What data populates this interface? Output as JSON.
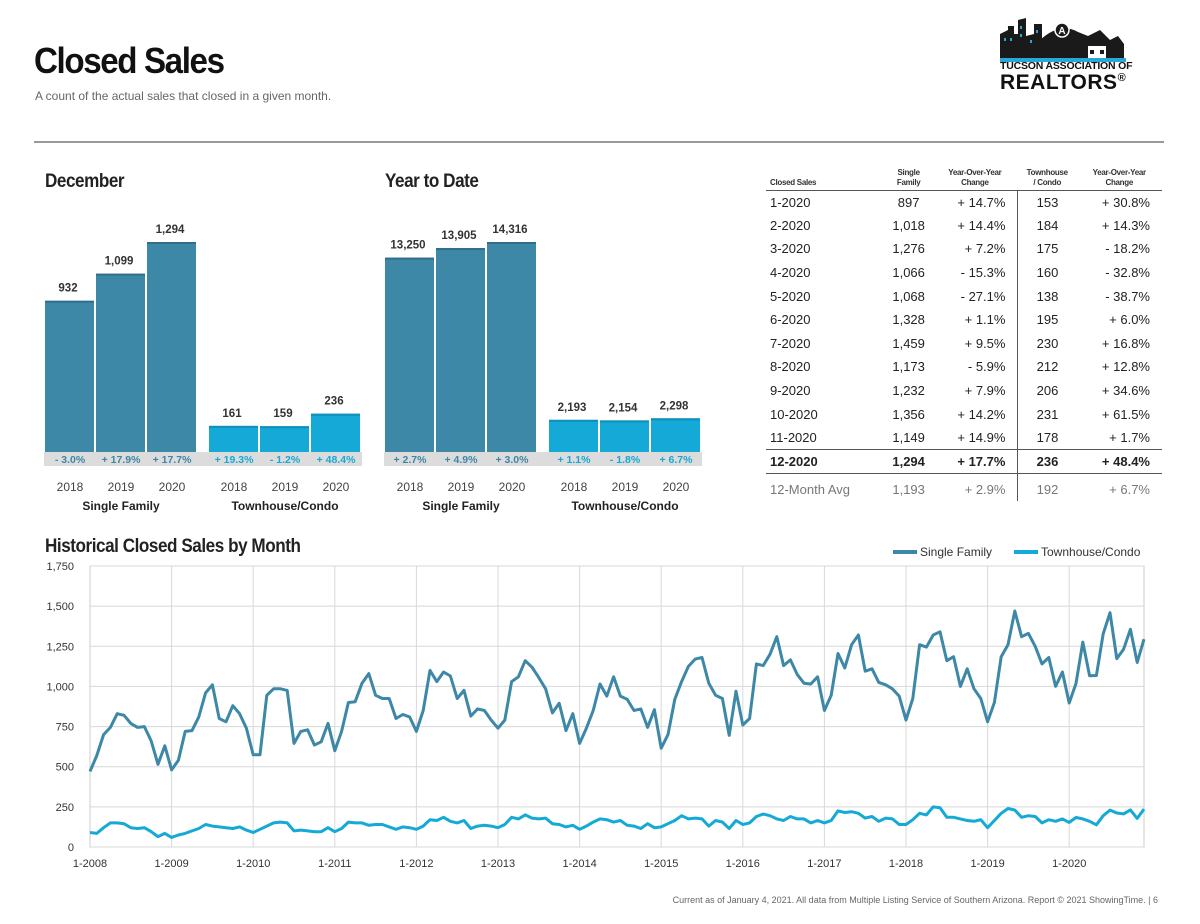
{
  "header": {
    "title": "Closed Sales",
    "subtitle": "A count of the actual sales that closed in a given month."
  },
  "logo": {
    "line1": "TUCSON ASSOCIATION OF",
    "line2": "REALTORS",
    "mark": "®",
    "letter": "A"
  },
  "colors": {
    "single_family": "#3d87a7",
    "townhouse": "#14a9d6"
  },
  "december": {
    "title": "December",
    "groups": [
      {
        "name": "Single Family",
        "years": [
          "2018",
          "2019",
          "2020"
        ],
        "values": [
          932,
          1099,
          1294
        ],
        "value_labels": [
          "932",
          "1,099",
          "1,294"
        ],
        "changes": [
          "- 3.0%",
          "+ 17.9%",
          "+ 17.7%"
        ]
      },
      {
        "name": "Townhouse/Condo",
        "years": [
          "2018",
          "2019",
          "2020"
        ],
        "values": [
          161,
          159,
          236
        ],
        "value_labels": [
          "161",
          "159",
          "236"
        ],
        "changes": [
          "+ 19.3%",
          "- 1.2%",
          "+ 48.4%"
        ]
      }
    ]
  },
  "ytd": {
    "title": "Year to Date",
    "groups": [
      {
        "name": "Single Family",
        "years": [
          "2018",
          "2019",
          "2020"
        ],
        "values": [
          13250,
          13905,
          14316
        ],
        "value_labels": [
          "13,250",
          "13,905",
          "14,316"
        ],
        "changes": [
          "+ 2.7%",
          "+ 4.9%",
          "+ 3.0%"
        ]
      },
      {
        "name": "Townhouse/Condo",
        "years": [
          "2018",
          "2019",
          "2020"
        ],
        "values": [
          2193,
          2154,
          2298
        ],
        "value_labels": [
          "2,193",
          "2,154",
          "2,298"
        ],
        "changes": [
          "+ 1.1%",
          "- 1.8%",
          "+ 6.7%"
        ]
      }
    ]
  },
  "table": {
    "headers": [
      {
        "l1": "",
        "l2": "Closed Sales"
      },
      {
        "l1": "Single",
        "l2": "Family"
      },
      {
        "l1": "Year-Over-Year",
        "l2": "Change"
      },
      {
        "l1": "Townhouse",
        "l2": "/ Condo"
      },
      {
        "l1": "Year-Over-Year",
        "l2": "Change"
      }
    ],
    "rows": [
      [
        "1-2020",
        "897",
        "+ 14.7%",
        "153",
        "+ 30.8%"
      ],
      [
        "2-2020",
        "1,018",
        "+ 14.4%",
        "184",
        "+ 14.3%"
      ],
      [
        "3-2020",
        "1,276",
        "+ 7.2%",
        "175",
        "- 18.2%"
      ],
      [
        "4-2020",
        "1,066",
        "- 15.3%",
        "160",
        "- 32.8%"
      ],
      [
        "5-2020",
        "1,068",
        "- 27.1%",
        "138",
        "- 38.7%"
      ],
      [
        "6-2020",
        "1,328",
        "+ 1.1%",
        "195",
        "+ 6.0%"
      ],
      [
        "7-2020",
        "1,459",
        "+ 9.5%",
        "230",
        "+ 16.8%"
      ],
      [
        "8-2020",
        "1,173",
        "- 5.9%",
        "212",
        "+ 12.8%"
      ],
      [
        "9-2020",
        "1,232",
        "+ 7.9%",
        "206",
        "+ 34.6%"
      ],
      [
        "10-2020",
        "1,356",
        "+ 14.2%",
        "231",
        "+ 61.5%"
      ],
      [
        "11-2020",
        "1,149",
        "+ 14.9%",
        "178",
        "+ 1.7%"
      ],
      [
        "12-2020",
        "1,294",
        "+ 17.7%",
        "236",
        "+ 48.4%"
      ]
    ],
    "avg": [
      "12-Month Avg",
      "1,193",
      "+ 2.9%",
      "192",
      "+ 6.7%"
    ]
  },
  "historical": {
    "title": "Historical Closed Sales by Month",
    "legend": [
      "Single Family",
      "Townhouse/Condo"
    ],
    "y_ticks": [
      0,
      250,
      500,
      750,
      1000,
      1250,
      1500,
      1750
    ],
    "y_tick_labels": [
      "0",
      "250",
      "500",
      "750",
      "1,000",
      "1,250",
      "1,500",
      "1,750"
    ],
    "x_tick_labels": [
      "1-2008",
      "1-2009",
      "1-2010",
      "1-2011",
      "1-2012",
      "1-2013",
      "1-2014",
      "1-2015",
      "1-2016",
      "1-2017",
      "1-2018",
      "1-2019",
      "1-2020"
    ]
  },
  "chart_data": [
    {
      "type": "bar",
      "title": "December",
      "categories": [
        "2018",
        "2019",
        "2020"
      ],
      "series": [
        {
          "name": "Single Family",
          "values": [
            932,
            1099,
            1294
          ]
        },
        {
          "name": "Townhouse/Condo",
          "values": [
            161,
            159,
            236
          ]
        }
      ]
    },
    {
      "type": "bar",
      "title": "Year to Date",
      "categories": [
        "2018",
        "2019",
        "2020"
      ],
      "series": [
        {
          "name": "Single Family",
          "values": [
            13250,
            13905,
            14316
          ]
        },
        {
          "name": "Townhouse/Condo",
          "values": [
            2193,
            2154,
            2298
          ]
        }
      ]
    },
    {
      "type": "line",
      "title": "Historical Closed Sales by Month",
      "x_start": "1-2008",
      "x_end": "12-2020",
      "ylim": [
        0,
        1750
      ],
      "legend": "top-right",
      "grid": true,
      "series": [
        {
          "name": "Single Family",
          "values": [
            470,
            570,
            700,
            745,
            830,
            820,
            770,
            745,
            750,
            660,
            515,
            630,
            480,
            540,
            720,
            725,
            810,
            960,
            1010,
            800,
            780,
            880,
            830,
            740,
            575,
            575,
            945,
            985,
            985,
            975,
            645,
            720,
            730,
            635,
            655,
            770,
            600,
            720,
            900,
            905,
            1020,
            1080,
            945,
            925,
            925,
            800,
            825,
            810,
            720,
            850,
            1100,
            1030,
            1090,
            1065,
            925,
            975,
            815,
            860,
            850,
            790,
            740,
            790,
            1030,
            1060,
            1160,
            1120,
            1055,
            985,
            835,
            895,
            725,
            830,
            645,
            740,
            850,
            1015,
            940,
            1060,
            940,
            920,
            850,
            860,
            745,
            855,
            615,
            700,
            920,
            1030,
            1125,
            1170,
            1180,
            1020,
            945,
            925,
            695,
            970,
            760,
            800,
            1140,
            1130,
            1200,
            1310,
            1130,
            1165,
            1075,
            1020,
            1015,
            1060,
            850,
            945,
            1205,
            1115,
            1260,
            1320,
            1095,
            1110,
            1025,
            1010,
            985,
            940,
            790,
            925,
            1260,
            1245,
            1320,
            1340,
            1160,
            1185,
            1000,
            1110,
            985,
            925,
            780,
            900,
            1185,
            1260,
            1470,
            1310,
            1330,
            1250,
            1140,
            1180,
            1000,
            1090,
            897,
            1018,
            1276,
            1066,
            1068,
            1328,
            1459,
            1173,
            1232,
            1356,
            1149,
            1294
          ]
        },
        {
          "name": "Townhouse/Condo",
          "values": [
            90,
            85,
            120,
            150,
            150,
            145,
            120,
            115,
            120,
            95,
            65,
            85,
            60,
            75,
            85,
            100,
            115,
            140,
            130,
            125,
            120,
            115,
            125,
            105,
            90,
            110,
            130,
            150,
            155,
            150,
            100,
            105,
            100,
            95,
            95,
            120,
            95,
            115,
            155,
            150,
            150,
            135,
            140,
            140,
            125,
            110,
            125,
            120,
            110,
            130,
            170,
            165,
            185,
            160,
            150,
            165,
            115,
            130,
            135,
            130,
            120,
            140,
            185,
            175,
            200,
            180,
            175,
            180,
            145,
            140,
            125,
            135,
            110,
            130,
            155,
            175,
            170,
            155,
            165,
            135,
            130,
            115,
            145,
            120,
            125,
            145,
            165,
            195,
            175,
            180,
            175,
            130,
            165,
            155,
            115,
            165,
            140,
            150,
            190,
            205,
            195,
            175,
            165,
            190,
            175,
            175,
            150,
            165,
            150,
            165,
            225,
            215,
            220,
            210,
            180,
            190,
            160,
            180,
            175,
            140,
            140,
            170,
            210,
            200,
            250,
            245,
            185,
            185,
            175,
            165,
            160,
            170,
            120,
            165,
            210,
            240,
            230,
            185,
            195,
            190,
            150,
            170,
            160,
            175,
            153,
            184,
            175,
            160,
            138,
            195,
            230,
            212,
            206,
            231,
            178,
            236
          ]
        }
      ]
    }
  ],
  "footer": "Current as of January 4, 2021. All data from Multiple Listing Service of Southern Arizona. Report © 2021 ShowingTime.  |  6"
}
